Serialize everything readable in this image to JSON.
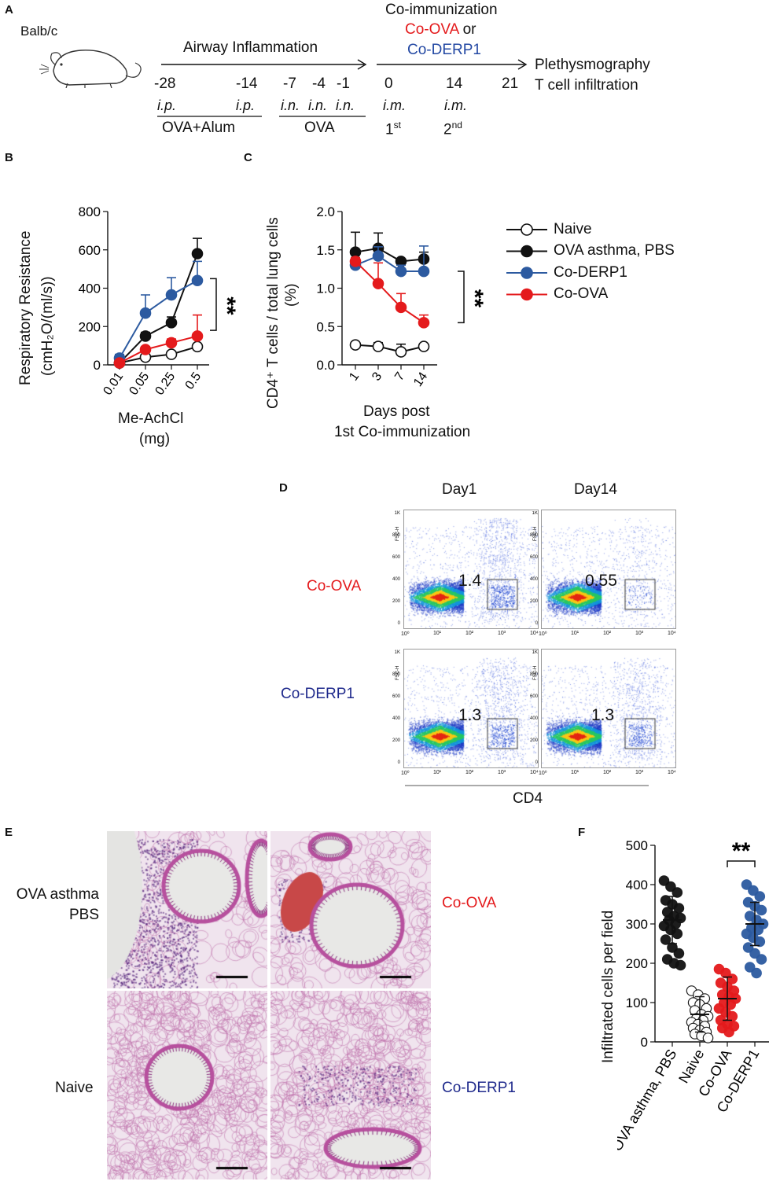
{
  "panelA": {
    "letter": "A",
    "strain": "Balb/c",
    "phase1": "Airway Inflammation",
    "coimm_title": "Co-immunization",
    "co_ova_or_a": "Co-OVA",
    "co_ova_or_b": "or",
    "co_derp1": "Co-DERP1",
    "readout1": "Plethysmography",
    "readout2": "T cell infiltration",
    "days": [
      "-28",
      "-14",
      "-7",
      "-4",
      "-1",
      "0",
      "14",
      "21"
    ],
    "ip1": "i.p.",
    "ip2": "i.p.",
    "in1": "i.n.",
    "in2": "i.n.",
    "in3": "i.n.",
    "im1": "i.m.",
    "im2": "i.m.",
    "label_ova_alum": "OVA+Alum",
    "label_ova": "OVA",
    "first": "1",
    "first_sup": "st",
    "second": "2",
    "second_sup": "nd"
  },
  "panelB": {
    "letter": "B",
    "sig": "**",
    "ylabel1": "Respiratory Resistance",
    "ylabel2": "(cmH₂O/(ml/s))",
    "xlabel1": "Me-AchCl",
    "xlabel2": "(mg)"
  },
  "panelC": {
    "letter": "C",
    "sig": "**",
    "ylabel1": "CD4⁺ T cells / total lung cells",
    "ylabel2": "(%)",
    "xlabel1": "Days post",
    "xlabel2": "1st Co-immunization"
  },
  "legend": {
    "items": [
      "Naive",
      "OVA asthma, PBS",
      "Co-DERP1",
      "Co-OVA"
    ]
  },
  "panelD": {
    "letter": "D",
    "col1": "Day1",
    "col2": "Day14",
    "row1": "Co-OVA",
    "row2": "Co-DERP1",
    "xaxis": "CD4",
    "yaxis_small": "FSC-H",
    "values": [
      "1.4",
      "0.55",
      "1.3",
      "1.3"
    ],
    "y_ticks": [
      "1K",
      "800",
      "600",
      "400",
      "200",
      "0"
    ],
    "x_ticks": [
      "10⁰",
      "10¹",
      "10²",
      "10³",
      "10⁴"
    ]
  },
  "panelE": {
    "letter": "E",
    "label_tl1": "OVA asthma",
    "label_tl2": "PBS",
    "label_tr": "Co-OVA",
    "label_bl": "Naive",
    "label_br": "Co-DERP1"
  },
  "panelF": {
    "letter": "F",
    "sig": "**",
    "ylabel": "Infiltrated cells per field"
  },
  "colors": {
    "black": "#111111",
    "blue": "#2c5aa0",
    "red": "#e41a1c",
    "navy": "#1f2a8c"
  },
  "chart_data": [
    {
      "id": "B",
      "type": "line",
      "title": "",
      "xlabel": "Me-AchCl (mg)",
      "ylabel": "Respiratory Resistance (cmH2O/(ml/s))",
      "categories": [
        "0.01",
        "0.05",
        "0.25",
        "0.5"
      ],
      "ylim": [
        0,
        800
      ],
      "yticks": [
        0,
        200,
        400,
        600,
        800
      ],
      "series": [
        {
          "name": "Naive",
          "values": [
            10,
            40,
            55,
            95
          ],
          "errors": [
            5,
            10,
            12,
            50
          ]
        },
        {
          "name": "OVA asthma, PBS",
          "values": [
            10,
            150,
            220,
            580
          ],
          "errors": [
            5,
            20,
            30,
            80
          ]
        },
        {
          "name": "Co-DERP1",
          "values": [
            35,
            270,
            365,
            440
          ],
          "errors": [
            20,
            95,
            90,
            100
          ]
        },
        {
          "name": "Co-OVA",
          "values": [
            10,
            80,
            115,
            150
          ],
          "errors": [
            5,
            15,
            20,
            110
          ]
        }
      ]
    },
    {
      "id": "C",
      "type": "line",
      "title": "",
      "xlabel": "Days post 1st Co-immunization",
      "ylabel": "CD4+ T cells / total lung cells (%)",
      "categories": [
        "1",
        "3",
        "7",
        "14"
      ],
      "ylim": [
        0,
        2.0
      ],
      "yticks": [
        0.0,
        0.5,
        1.0,
        1.5,
        2.0
      ],
      "series": [
        {
          "name": "Naive",
          "values": [
            0.26,
            0.24,
            0.17,
            0.24
          ],
          "errors": [
            0.02,
            0.05,
            0.1,
            0.03
          ]
        },
        {
          "name": "OVA asthma, PBS",
          "values": [
            1.47,
            1.52,
            1.35,
            1.38
          ],
          "errors": [
            0.26,
            0.2,
            0.03,
            0.09
          ]
        },
        {
          "name": "Co-DERP1",
          "values": [
            1.3,
            1.42,
            1.22,
            1.22
          ],
          "errors": [
            0.03,
            0.12,
            0.08,
            0.33
          ]
        },
        {
          "name": "Co-OVA",
          "values": [
            1.35,
            1.06,
            0.75,
            0.55
          ],
          "errors": [
            0.05,
            0.27,
            0.18,
            0.1
          ]
        }
      ]
    },
    {
      "id": "F",
      "type": "scatter",
      "title": "",
      "xlabel": "",
      "ylabel": "Infiltrated cells per field",
      "categories": [
        "OVA asthma, PBS",
        "Naive",
        "Co-OVA",
        "Co-DERP1"
      ],
      "ylim": [
        0,
        500
      ],
      "yticks": [
        0,
        100,
        200,
        300,
        400,
        500
      ],
      "series": [
        {
          "name": "OVA asthma, PBS",
          "mean": 310,
          "sd": 60,
          "points": [
            410,
            395,
            380,
            360,
            350,
            340,
            330,
            320,
            315,
            310,
            300,
            295,
            285,
            275,
            260,
            240,
            225,
            210,
            200,
            195
          ]
        },
        {
          "name": "Naive",
          "mean": 70,
          "sd": 45,
          "points": [
            130,
            120,
            110,
            100,
            95,
            85,
            80,
            70,
            65,
            60,
            55,
            50,
            45,
            40,
            35,
            30,
            25,
            20,
            15,
            10
          ]
        },
        {
          "name": "Co-OVA",
          "mean": 110,
          "sd": 55,
          "points": [
            185,
            175,
            160,
            150,
            140,
            130,
            120,
            115,
            110,
            100,
            95,
            85,
            75,
            65,
            55,
            45,
            40,
            35,
            25
          ]
        },
        {
          "name": "Co-DERP1",
          "mean": 300,
          "sd": 55,
          "points": [
            400,
            385,
            370,
            355,
            345,
            335,
            320,
            310,
            300,
            290,
            285,
            275,
            265,
            255,
            240,
            225,
            210,
            190,
            175
          ]
        }
      ]
    }
  ]
}
